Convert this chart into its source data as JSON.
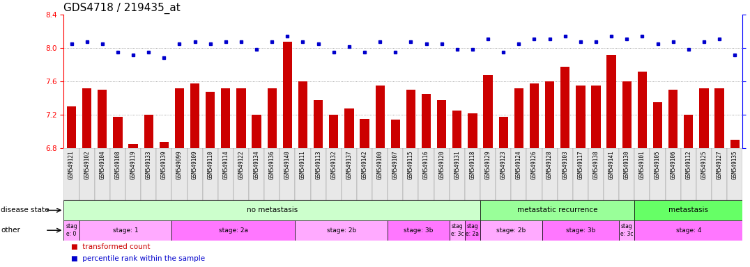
{
  "title": "GDS4718 / 219435_at",
  "samples": [
    "GSM549121",
    "GSM549102",
    "GSM549104",
    "GSM549108",
    "GSM549119",
    "GSM549133",
    "GSM549139",
    "GSM549099",
    "GSM549109",
    "GSM549110",
    "GSM549114",
    "GSM549122",
    "GSM549134",
    "GSM549136",
    "GSM549140",
    "GSM549111",
    "GSM549113",
    "GSM549132",
    "GSM549137",
    "GSM549142",
    "GSM549100",
    "GSM549107",
    "GSM549115",
    "GSM549116",
    "GSM549120",
    "GSM549131",
    "GSM549118",
    "GSM549129",
    "GSM549123",
    "GSM549124",
    "GSM549126",
    "GSM549128",
    "GSM549103",
    "GSM549117",
    "GSM549138",
    "GSM549141",
    "GSM549130",
    "GSM549101",
    "GSM549105",
    "GSM549106",
    "GSM549112",
    "GSM549125",
    "GSM549127",
    "GSM549135"
  ],
  "bar_values": [
    7.3,
    7.52,
    7.5,
    7.18,
    6.85,
    7.2,
    6.88,
    7.52,
    7.58,
    7.48,
    7.52,
    7.52,
    7.2,
    7.52,
    8.08,
    7.6,
    7.38,
    7.2,
    7.28,
    7.15,
    7.55,
    7.14,
    7.5,
    7.45,
    7.38,
    7.25,
    7.22,
    7.68,
    7.18,
    7.52,
    7.58,
    7.6,
    7.78,
    7.55,
    7.55,
    7.92,
    7.6,
    7.72,
    7.35,
    7.5,
    7.2,
    7.52,
    7.52,
    6.9
  ],
  "dot_values": [
    78,
    80,
    78,
    72,
    70,
    72,
    68,
    78,
    80,
    78,
    80,
    80,
    74,
    80,
    84,
    80,
    78,
    72,
    76,
    72,
    80,
    72,
    80,
    78,
    78,
    74,
    74,
    82,
    72,
    78,
    82,
    82,
    84,
    80,
    80,
    84,
    82,
    84,
    78,
    80,
    74,
    80,
    82,
    70
  ],
  "ylim_left": [
    6.8,
    8.4
  ],
  "ylim_right": [
    0,
    100
  ],
  "yticks_left": [
    6.8,
    7.2,
    7.6,
    8.0,
    8.4
  ],
  "yticks_right": [
    0,
    25,
    50,
    75,
    100
  ],
  "bar_color": "#cc0000",
  "dot_color": "#0000cc",
  "bar_baseline": 6.8,
  "disease_state_groups": [
    {
      "label": "no metastasis",
      "start": 0,
      "end": 27,
      "color": "#ccffcc"
    },
    {
      "label": "metastatic recurrence",
      "start": 27,
      "end": 37,
      "color": "#99ff99"
    },
    {
      "label": "metastasis",
      "start": 37,
      "end": 44,
      "color": "#66ff66"
    }
  ],
  "stage_groups": [
    {
      "label": "stag\ne: 0",
      "start": 0,
      "end": 1,
      "color": "#ffaaff"
    },
    {
      "label": "stage: 1",
      "start": 1,
      "end": 7,
      "color": "#ffaaff"
    },
    {
      "label": "stage: 2a",
      "start": 7,
      "end": 15,
      "color": "#ff77ff"
    },
    {
      "label": "stage: 2b",
      "start": 15,
      "end": 21,
      "color": "#ffaaff"
    },
    {
      "label": "stage: 3b",
      "start": 21,
      "end": 25,
      "color": "#ff77ff"
    },
    {
      "label": "stag\ne: 3c",
      "start": 25,
      "end": 26,
      "color": "#ffaaff"
    },
    {
      "label": "stag\ne: 2a",
      "start": 26,
      "end": 27,
      "color": "#ff77ff"
    },
    {
      "label": "stage: 2b",
      "start": 27,
      "end": 31,
      "color": "#ffaaff"
    },
    {
      "label": "stage: 3b",
      "start": 31,
      "end": 36,
      "color": "#ff77ff"
    },
    {
      "label": "stag\ne: 3c",
      "start": 36,
      "end": 37,
      "color": "#ffaaff"
    },
    {
      "label": "stage: 4",
      "start": 37,
      "end": 44,
      "color": "#ff77ff"
    }
  ],
  "disease_state_label": "disease state",
  "other_label": "other",
  "legend_bar_label": "transformed count",
  "legend_dot_label": "percentile rank within the sample",
  "background_color": "#ffffff",
  "title_fontsize": 11,
  "tick_fontsize": 7.5
}
